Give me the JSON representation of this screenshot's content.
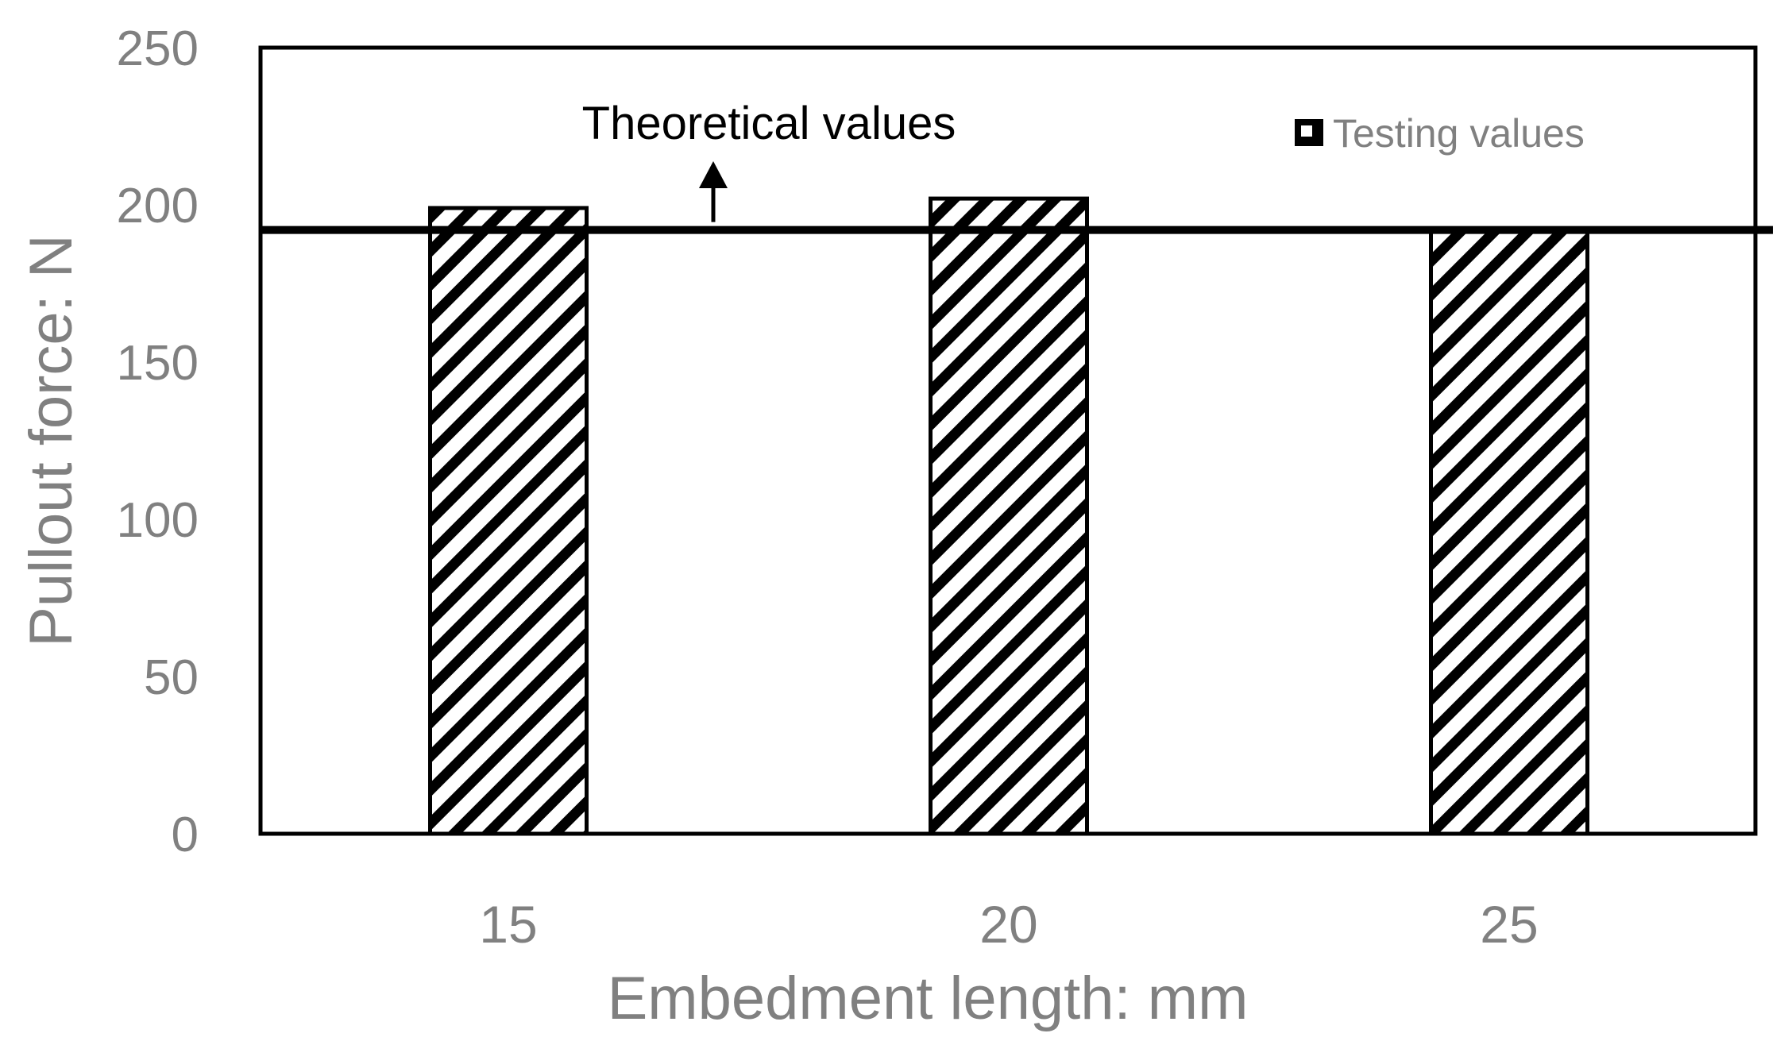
{
  "chart_data": {
    "type": "bar",
    "categories": [
      "15",
      "20",
      "25"
    ],
    "series": [
      {
        "name": "Testing values",
        "values": [
          199,
          202,
          192
        ]
      }
    ],
    "theoretical_value": 192,
    "xlabel": "Embedment length: mm",
    "ylabel": "Pullout force: N",
    "ylim": [
      0,
      250
    ],
    "yticks": [
      0,
      50,
      100,
      150,
      200,
      250
    ],
    "annotation": "Theoretical values",
    "legend_position": "top-right",
    "grid": false,
    "bar_fill": "diagonal hatch",
    "colors": {
      "axis_text": "#808080",
      "line": "#000000",
      "bar_stroke": "#000000"
    }
  }
}
